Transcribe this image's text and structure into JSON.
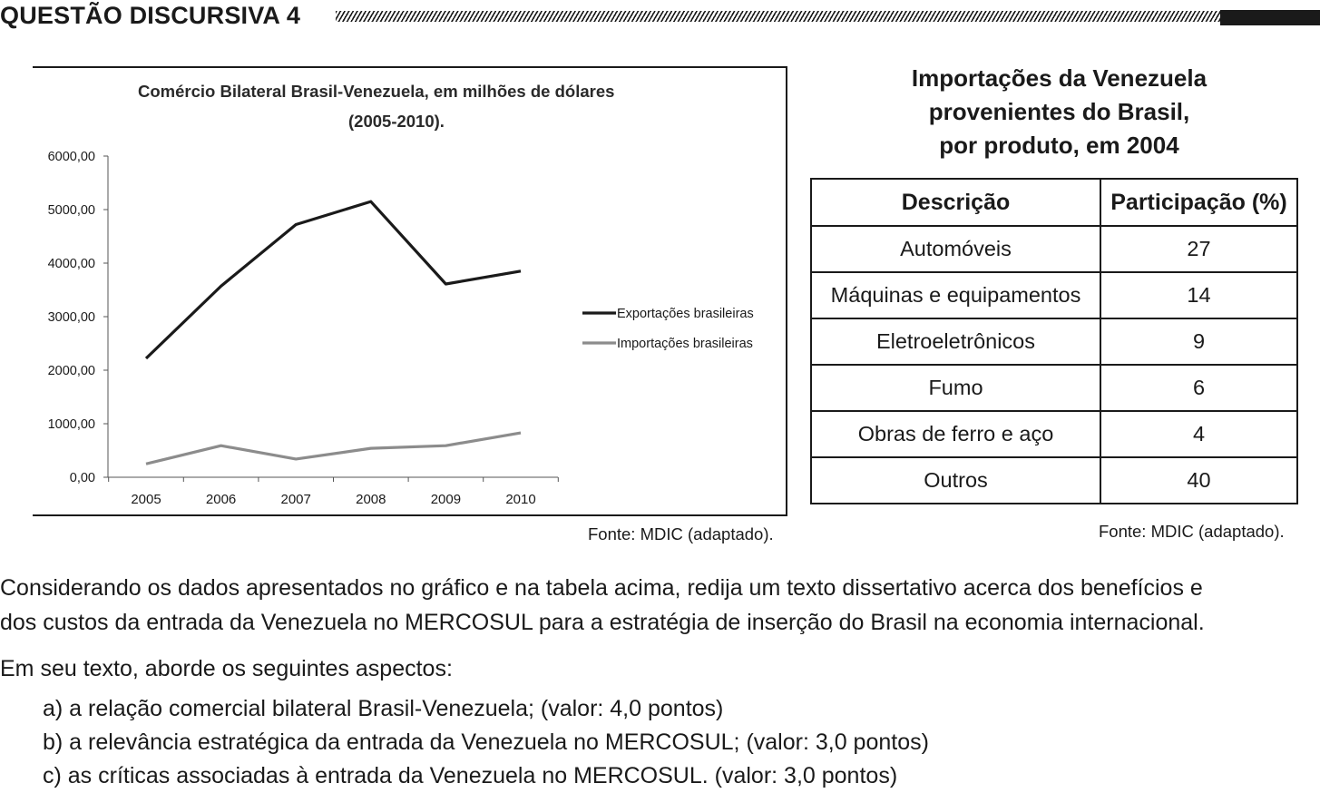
{
  "header": {
    "title": "QUESTÃO DISCURSIVA 4"
  },
  "chart_data": {
    "type": "line",
    "title": "Comércio Bilateral Brasil-Venezuela, em milhões de dólares",
    "subtitle": "(2005-2010).",
    "categories": [
      "2005",
      "2006",
      "2007",
      "2008",
      "2009",
      "2010"
    ],
    "series": [
      {
        "name": "Exportações brasileiras",
        "color": "#1a1a1a",
        "values": [
          2220,
          3570,
          4720,
          5150,
          3610,
          3850
        ]
      },
      {
        "name": "Importações brasileiras",
        "color": "#8c8c8c",
        "values": [
          250,
          590,
          340,
          540,
          590,
          830
        ]
      }
    ],
    "yticks": [
      "0,00",
      "1000,00",
      "2000,00",
      "3000,00",
      "4000,00",
      "5000,00",
      "6000,00"
    ],
    "ylim": [
      0,
      6000
    ],
    "legend": "right",
    "grid": false
  },
  "chart_source": "Fonte: MDIC (adaptado).",
  "table": {
    "title_lines": [
      "Importações da Venezuela",
      "provenientes do Brasil,",
      "por produto, em 2004"
    ],
    "headers": [
      "Descrição",
      "Participação (%)"
    ],
    "rows": [
      [
        "Automóveis",
        "27"
      ],
      [
        "Máquinas e equipamentos",
        "14"
      ],
      [
        "Eletroeletrônicos",
        "9"
      ],
      [
        "Fumo",
        "6"
      ],
      [
        "Obras de ferro e aço",
        "4"
      ],
      [
        "Outros",
        "40"
      ]
    ],
    "source": "Fonte: MDIC (adaptado)."
  },
  "text": {
    "p1_line1": "Considerando os dados apresentados no gráfico e na tabela acima, redija um texto dissertativo acerca dos benefícios e",
    "p1_line2": "dos custos da entrada da Venezuela no MERCOSUL para a estratégia de inserção do Brasil na economia internacional.",
    "p2": "Em seu texto, aborde os seguintes aspectos:",
    "items": [
      "a) a relação comercial bilateral Brasil-Venezuela; (valor: 4,0 pontos)",
      "b) a relevância estratégica da entrada da Venezuela no MERCOSUL; (valor: 3,0 pontos)",
      "c) as críticas associadas à entrada da Venezuela no MERCOSUL. (valor: 3,0 pontos)"
    ]
  }
}
